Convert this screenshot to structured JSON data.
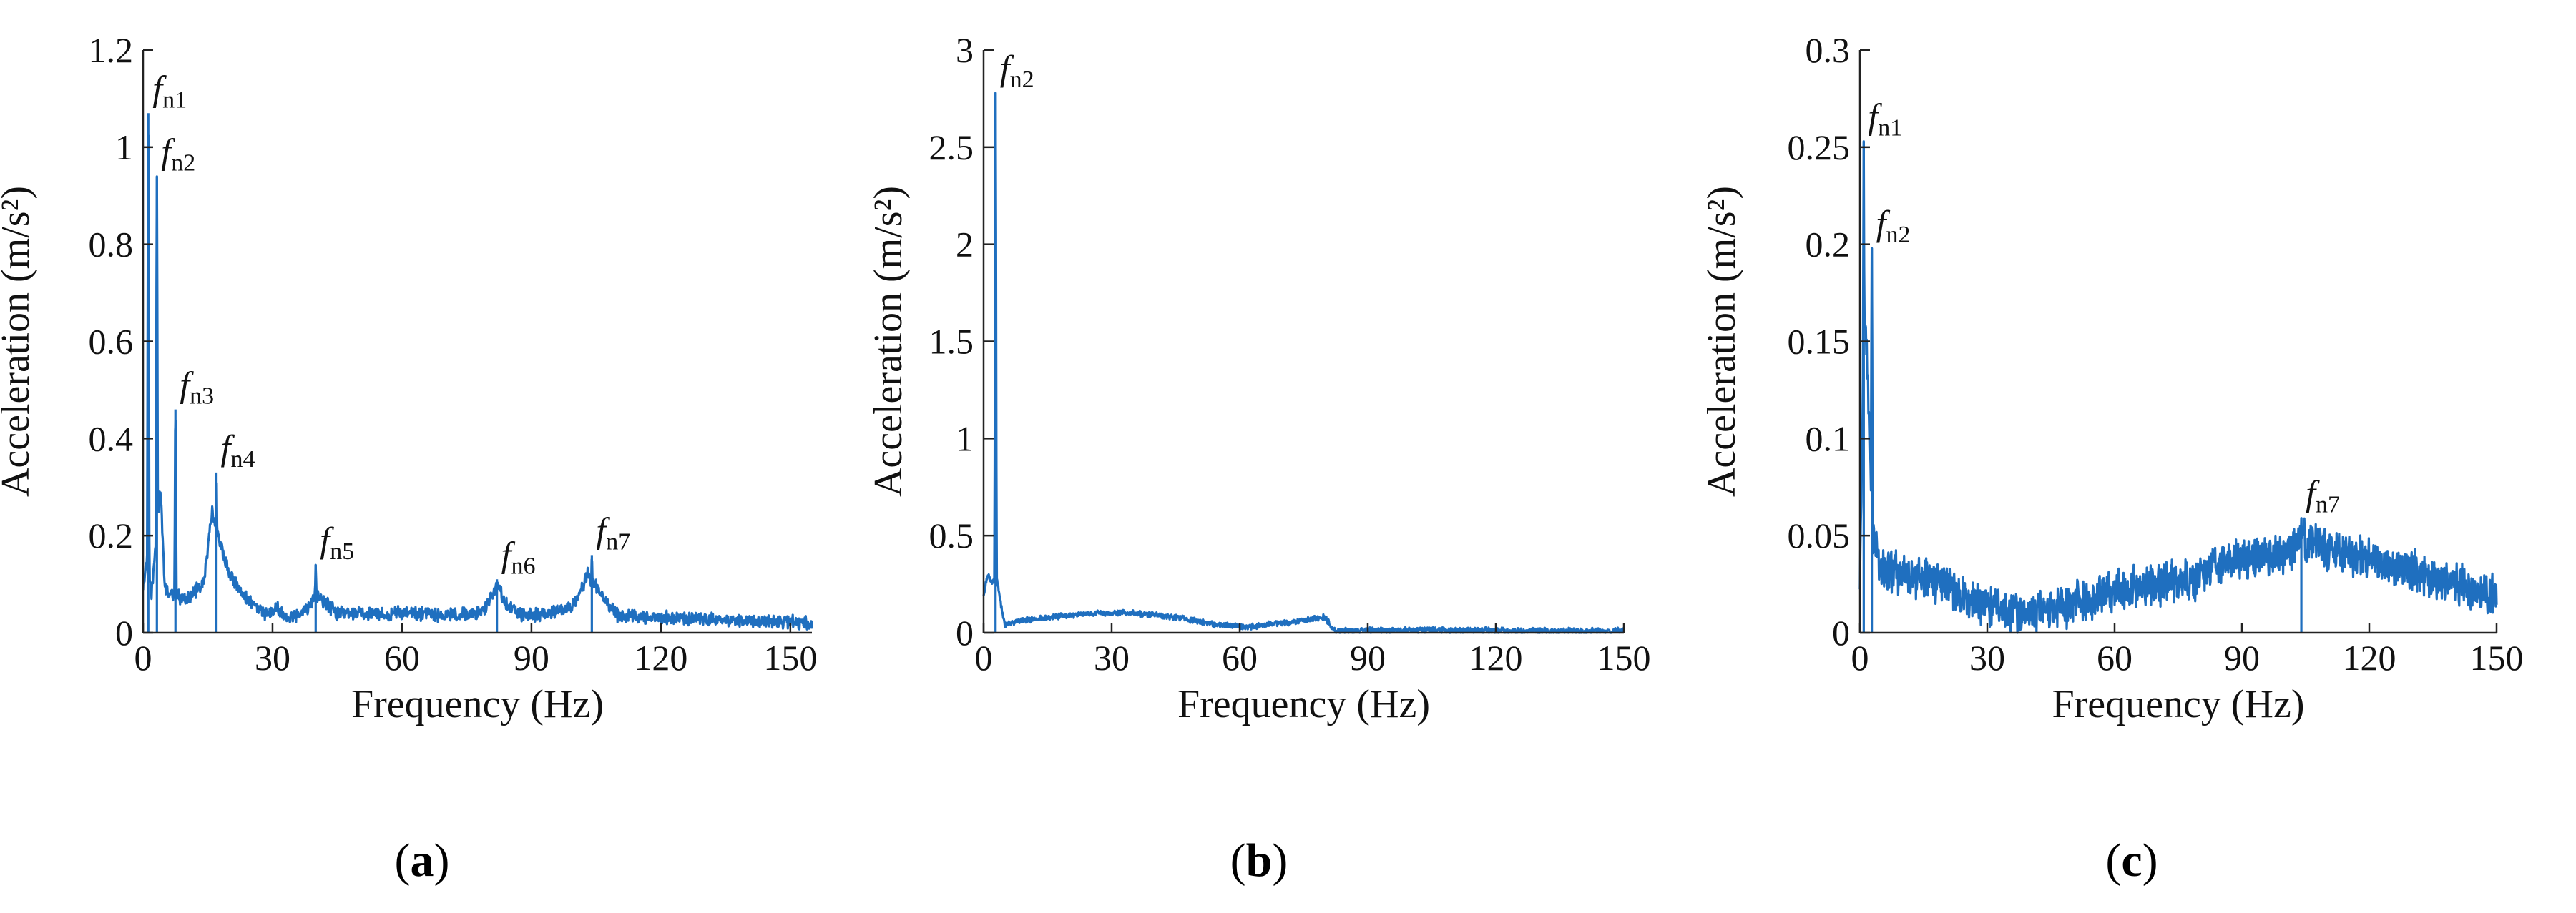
{
  "figure": {
    "panel_labels": [
      {
        "open": "(",
        "letter": "a",
        "close": ")"
      },
      {
        "open": "(",
        "letter": "b",
        "close": ")"
      },
      {
        "open": "(",
        "letter": "c",
        "close": ")"
      }
    ]
  },
  "chart_data": [
    {
      "type": "line",
      "id": "a",
      "color": "#1f6fbf",
      "xlabel": "Frequency (Hz)",
      "ylabel": "Acceleration (m/s²)",
      "xlim": [
        0,
        155
      ],
      "ylim": [
        0,
        1.2
      ],
      "xticks": [
        0,
        30,
        60,
        90,
        120,
        150
      ],
      "yticks": [
        0,
        0.2,
        0.4,
        0.6,
        0.8,
        1,
        1.2
      ],
      "ytick_labels": [
        "0",
        "0.2",
        "0.4",
        "0.6",
        "0.8",
        "1",
        "1.2"
      ],
      "baseline": [
        [
          0,
          0.1
        ],
        [
          1,
          0.15
        ],
        [
          2,
          0.08
        ],
        [
          4,
          0.3
        ],
        [
          5,
          0.1
        ],
        [
          6,
          0.08
        ],
        [
          10,
          0.07
        ],
        [
          14,
          0.1
        ],
        [
          16,
          0.25
        ],
        [
          18,
          0.18
        ],
        [
          20,
          0.12
        ],
        [
          24,
          0.07
        ],
        [
          28,
          0.04
        ],
        [
          31,
          0.05
        ],
        [
          34,
          0.03
        ],
        [
          38,
          0.05
        ],
        [
          40,
          0.08
        ],
        [
          45,
          0.04
        ],
        [
          60,
          0.04
        ],
        [
          70,
          0.035
        ],
        [
          78,
          0.04
        ],
        [
          80,
          0.06
        ],
        [
          82,
          0.1
        ],
        [
          84,
          0.06
        ],
        [
          88,
          0.035
        ],
        [
          95,
          0.04
        ],
        [
          100,
          0.06
        ],
        [
          103,
          0.12
        ],
        [
          106,
          0.08
        ],
        [
          110,
          0.035
        ],
        [
          120,
          0.03
        ],
        [
          140,
          0.025
        ],
        [
          155,
          0.02
        ]
      ],
      "peaks": [
        [
          1.2,
          1.07
        ],
        [
          3.2,
          0.94
        ],
        [
          7.5,
          0.46
        ],
        [
          17,
          0.33
        ],
        [
          40,
          0.14
        ],
        [
          82,
          0.11
        ],
        [
          104,
          0.16
        ]
      ],
      "noise": 0.012,
      "annotations": [
        {
          "label": "f",
          "sub": "n1",
          "x": 1.2,
          "y": 1.07
        },
        {
          "label": "f",
          "sub": "n2",
          "x": 3.2,
          "y": 0.94
        },
        {
          "label": "f",
          "sub": "n3",
          "x": 7.5,
          "y": 0.46
        },
        {
          "label": "f",
          "sub": "n4",
          "x": 17,
          "y": 0.33
        },
        {
          "label": "f",
          "sub": "n5",
          "x": 40,
          "y": 0.14
        },
        {
          "label": "f",
          "sub": "n6",
          "x": 82,
          "y": 0.11
        },
        {
          "label": "f",
          "sub": "n7",
          "x": 104,
          "y": 0.16
        }
      ]
    },
    {
      "type": "line",
      "id": "b",
      "color": "#1f6fbf",
      "xlabel": "Frequency (Hz)",
      "ylabel": "Acceleration (m/s²)",
      "xlim": [
        0,
        150
      ],
      "ylim": [
        0,
        3
      ],
      "xticks": [
        0,
        30,
        60,
        90,
        120,
        150
      ],
      "yticks": [
        0,
        0.5,
        1,
        1.5,
        2,
        2.5,
        3
      ],
      "ytick_labels": [
        "0",
        "0.5",
        "1",
        "1.5",
        "2",
        "2.5",
        "3"
      ],
      "baseline": [
        [
          0,
          0.2
        ],
        [
          1,
          0.3
        ],
        [
          2,
          0.25
        ],
        [
          3,
          0.3
        ],
        [
          4,
          0.15
        ],
        [
          5,
          0.04
        ],
        [
          8,
          0.06
        ],
        [
          15,
          0.08
        ],
        [
          25,
          0.1
        ],
        [
          35,
          0.1
        ],
        [
          45,
          0.08
        ],
        [
          55,
          0.04
        ],
        [
          62,
          0.03
        ],
        [
          70,
          0.05
        ],
        [
          80,
          0.08
        ],
        [
          82,
          0.01
        ],
        [
          100,
          0.015
        ],
        [
          125,
          0.01
        ],
        [
          150,
          0.01
        ]
      ],
      "peaks": [
        [
          2.8,
          2.78
        ]
      ],
      "noise": 0.012,
      "annotations": [
        {
          "label": "f",
          "sub": "n2",
          "x": 2.8,
          "y": 2.78
        }
      ]
    },
    {
      "type": "line",
      "id": "c",
      "color": "#1f6fbf",
      "xlabel": "Frequency (Hz)",
      "ylabel": "Acceleration (m/s²)",
      "xlim": [
        0,
        150
      ],
      "ylim": [
        0,
        0.3
      ],
      "xticks": [
        0,
        30,
        60,
        90,
        120,
        150
      ],
      "yticks": [
        0,
        0.05,
        0.1,
        0.15,
        0.2,
        0.25,
        0.3
      ],
      "ytick_labels": [
        "0",
        "0.05",
        "0.1",
        "0.15",
        "0.2",
        "0.25",
        "0.3"
      ],
      "baseline": [
        [
          0,
          0.03
        ],
        [
          1,
          0.17
        ],
        [
          2,
          0.12
        ],
        [
          3,
          0.05
        ],
        [
          5,
          0.035
        ],
        [
          10,
          0.03
        ],
        [
          20,
          0.025
        ],
        [
          30,
          0.012
        ],
        [
          40,
          0.01
        ],
        [
          50,
          0.015
        ],
        [
          60,
          0.022
        ],
        [
          70,
          0.025
        ],
        [
          80,
          0.028
        ],
        [
          85,
          0.035
        ],
        [
          90,
          0.038
        ],
        [
          100,
          0.04
        ],
        [
          104,
          0.05
        ],
        [
          110,
          0.042
        ],
        [
          120,
          0.038
        ],
        [
          130,
          0.032
        ],
        [
          140,
          0.026
        ],
        [
          150,
          0.018
        ]
      ],
      "peaks": [
        [
          0.9,
          0.253
        ],
        [
          2.8,
          0.198
        ],
        [
          104,
          0.059
        ]
      ],
      "noise": 0.009,
      "annotations": [
        {
          "label": "f",
          "sub": "n1",
          "x": 0.9,
          "y": 0.253
        },
        {
          "label": "f",
          "sub": "n2",
          "x": 2.8,
          "y": 0.198
        },
        {
          "label": "f",
          "sub": "n7",
          "x": 104,
          "y": 0.059
        }
      ]
    }
  ]
}
